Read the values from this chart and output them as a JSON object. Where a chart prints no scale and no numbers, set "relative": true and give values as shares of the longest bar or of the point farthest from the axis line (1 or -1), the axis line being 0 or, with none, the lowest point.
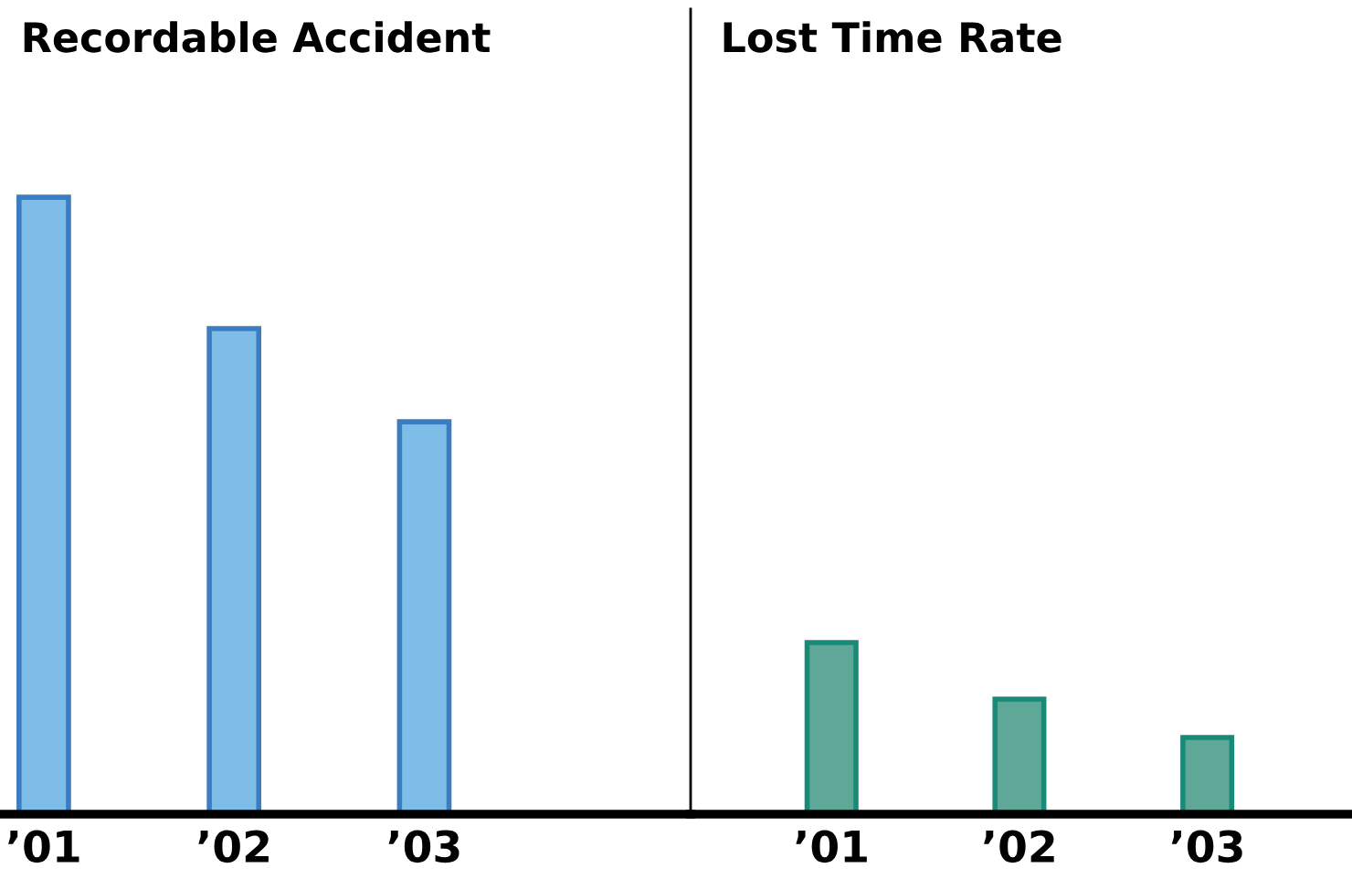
{
  "chart_data": [
    {
      "type": "bar",
      "title": "Recordable Accident",
      "categories": [
        "’01",
        "’02",
        "’03"
      ],
      "values": [
        1,
        0.787,
        0.636
      ],
      "color": "#7dbde8",
      "relative": true,
      "grid": false,
      "legend": false
    },
    {
      "type": "bar",
      "title": "Lost Time Rate",
      "categories": [
        "’01",
        "’02",
        "’03"
      ],
      "values": [
        1,
        0.67,
        0.447
      ],
      "color": "#5fa898",
      "relative": true,
      "grid": false,
      "legend": false
    }
  ]
}
